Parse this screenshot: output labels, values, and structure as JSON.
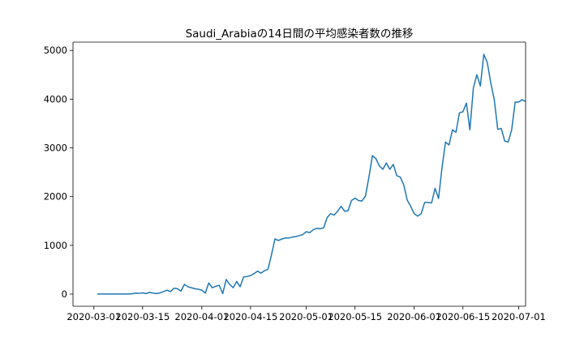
{
  "chart_data": {
    "type": "line",
    "title": "Saudi_Arabiaの14日間の平均感染者数の推移",
    "xlabel": "",
    "ylabel": "",
    "x_start": "2020-03-02",
    "x_range": [
      "2020-02-24",
      "2020-07-03"
    ],
    "ylim": [
      -250,
      5170
    ],
    "x_ticks": [
      "2020-03-01",
      "2020-03-15",
      "2020-04-01",
      "2020-04-15",
      "2020-05-01",
      "2020-05-15",
      "2020-06-01",
      "2020-06-15",
      "2020-07-01"
    ],
    "y_ticks": [
      0,
      1000,
      2000,
      3000,
      4000,
      5000
    ],
    "grid": false,
    "color": "#1f77b4",
    "series": [
      {
        "values": [
          1,
          1,
          1,
          1,
          1,
          1,
          1,
          1,
          1,
          1,
          5,
          20,
          15,
          25,
          10,
          35,
          20,
          10,
          25,
          50,
          80,
          50,
          120,
          110,
          60,
          200,
          150,
          130,
          110,
          100,
          80,
          20,
          230,
          130,
          160,
          180,
          10,
          300,
          200,
          130,
          260,
          150,
          350,
          360,
          380,
          420,
          470,
          430,
          480,
          510,
          800,
          1130,
          1100,
          1130,
          1150,
          1150,
          1170,
          1180,
          1200,
          1220,
          1280,
          1260,
          1320,
          1350,
          1340,
          1360,
          1570,
          1650,
          1620,
          1700,
          1800,
          1700,
          1710,
          1920,
          1970,
          1920,
          1910,
          2010,
          2400,
          2840,
          2780,
          2630,
          2560,
          2690,
          2560,
          2660,
          2430,
          2400,
          2240,
          1930,
          1800,
          1650,
          1600,
          1650,
          1880,
          1880,
          1870,
          2170,
          1960,
          2600,
          3120,
          3060,
          3370,
          3320,
          3720,
          3740,
          3920,
          3370,
          4230,
          4500,
          4270,
          4920,
          4750,
          4330,
          3990,
          3380,
          3400,
          3140,
          3120,
          3370,
          3940,
          3940,
          3990,
          3950
        ]
      }
    ]
  }
}
